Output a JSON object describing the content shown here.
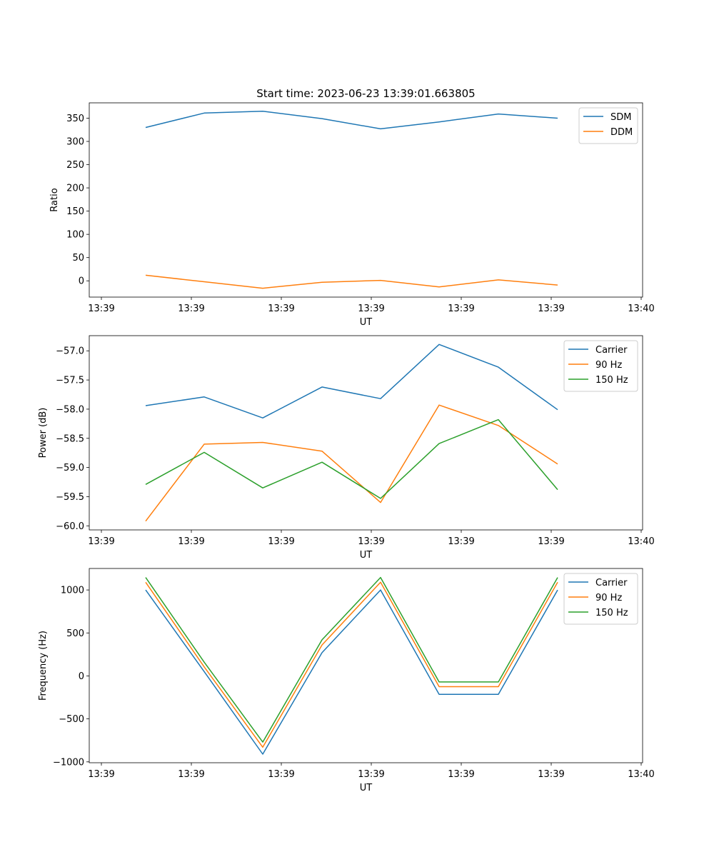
{
  "figure": {
    "title": "Start time: 2023-06-23 13:39:01.663805"
  },
  "chart_data": [
    {
      "type": "line",
      "title": "Start time: 2023-06-23 13:39:01.663805",
      "xlabel": "UT",
      "ylabel": "Ratio",
      "x_ticks": [
        "13:39",
        "13:39",
        "13:39",
        "13:39",
        "13:39",
        "13:39",
        "13:40"
      ],
      "y_ticks": [
        0,
        50,
        100,
        150,
        200,
        250,
        300,
        350
      ],
      "ylim": [
        -35,
        383
      ],
      "legend_position": "top-right",
      "grid": false,
      "series": [
        {
          "name": "SDM",
          "color": "#1f77b4",
          "values": [
            330,
            361,
            365,
            349,
            327,
            342,
            359,
            350
          ]
        },
        {
          "name": "DDM",
          "color": "#ff7f0e",
          "values": [
            12,
            -2,
            -16,
            -3,
            1,
            -13,
            2,
            -9
          ]
        }
      ]
    },
    {
      "type": "line",
      "title": "",
      "xlabel": "UT",
      "ylabel": "Power (dB)",
      "x_ticks": [
        "13:39",
        "13:39",
        "13:39",
        "13:39",
        "13:39",
        "13:39",
        "13:40"
      ],
      "y_ticks": [
        -60.0,
        -59.5,
        -59.0,
        -58.5,
        -58.0,
        -57.5,
        -57.0
      ],
      "y_tick_labels": [
        "−60.0",
        "−59.5",
        "−59.0",
        "−58.5",
        "−58.0",
        "−57.5",
        "−57.0"
      ],
      "ylim": [
        -60.07,
        -56.74
      ],
      "legend_position": "top-right",
      "grid": false,
      "series": [
        {
          "name": "Carrier",
          "color": "#1f77b4",
          "values": [
            -57.94,
            -57.79,
            -58.15,
            -57.62,
            -57.82,
            -56.89,
            -57.28,
            -58.01
          ]
        },
        {
          "name": "90 Hz",
          "color": "#ff7f0e",
          "values": [
            -59.92,
            -58.6,
            -58.57,
            -58.72,
            -59.6,
            -57.93,
            -58.28,
            -58.94
          ]
        },
        {
          "name": "150 Hz",
          "color": "#2ca02c",
          "values": [
            -59.29,
            -58.74,
            -59.35,
            -58.91,
            -59.53,
            -58.59,
            -58.18,
            -59.38
          ]
        }
      ]
    },
    {
      "type": "line",
      "title": "",
      "xlabel": "UT",
      "ylabel": "Frequency (Hz)",
      "x_ticks": [
        "13:39",
        "13:39",
        "13:39",
        "13:39",
        "13:39",
        "13:39",
        "13:40"
      ],
      "y_ticks": [
        -1000,
        -500,
        0,
        500,
        1000
      ],
      "y_tick_labels": [
        "−1000",
        "−500",
        "0",
        "500",
        "1000"
      ],
      "ylim": [
        -1010,
        1250
      ],
      "legend_position": "top-right",
      "grid": false,
      "series": [
        {
          "name": "Carrier",
          "color": "#1f77b4",
          "values": [
            1000,
            50,
            -910,
            270,
            1000,
            -215,
            -215,
            1000
          ]
        },
        {
          "name": "90 Hz",
          "color": "#ff7f0e",
          "values": [
            1090,
            105,
            -830,
            360,
            1090,
            -125,
            -125,
            1090
          ]
        },
        {
          "name": "150 Hz",
          "color": "#2ca02c",
          "values": [
            1145,
            160,
            -770,
            420,
            1145,
            -70,
            -70,
            1145
          ]
        }
      ]
    }
  ]
}
